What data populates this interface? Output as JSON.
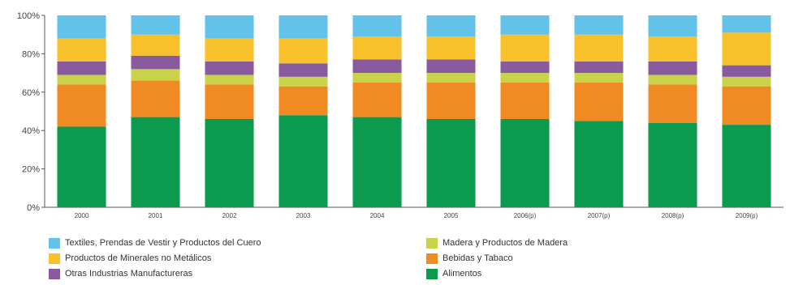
{
  "chart_data": {
    "type": "bar",
    "stacked": true,
    "percent": true,
    "title": "",
    "xlabel": "",
    "ylabel": "",
    "ylim": [
      0,
      100
    ],
    "yticks": [
      "0%",
      "20%",
      "40%",
      "60%",
      "80%",
      "100%"
    ],
    "categories": [
      "2000",
      "2001",
      "2002",
      "2003",
      "2004",
      "2005",
      "2006(p)",
      "2007(p)",
      "2008(p)",
      "2009(p)"
    ],
    "series": [
      {
        "name": "Alimentos",
        "color": "#0b9a4e",
        "values": [
          42,
          47,
          46,
          48,
          47,
          46,
          46,
          45,
          44,
          43
        ]
      },
      {
        "name": "Bebidas y Tabaco",
        "color": "#f08a22",
        "values": [
          22,
          19,
          18,
          15,
          18,
          19,
          19,
          20,
          20,
          20
        ]
      },
      {
        "name": "Madera y Productos de Madera",
        "color": "#c8d34a",
        "values": [
          5,
          6,
          5,
          5,
          5,
          5,
          5,
          5,
          5,
          5
        ]
      },
      {
        "name": "Otras Industrias Manufactureras",
        "color": "#8a5a9e",
        "values": [
          7,
          7,
          7,
          7,
          7,
          7,
          6,
          6,
          7,
          6
        ]
      },
      {
        "name": "Productos de Minerales no Metálicos",
        "color": "#f8c12b",
        "values": [
          12,
          11,
          12,
          13,
          12,
          12,
          14,
          14,
          13,
          17
        ]
      },
      {
        "name": "Textiles, Prendas de Vestir y Productos del Cuero",
        "color": "#62c2ea",
        "values": [
          12,
          10,
          12,
          12,
          11,
          11,
          10,
          10,
          11,
          9
        ]
      }
    ],
    "legend": {
      "position": "bottom",
      "order": [
        "Textiles, Prendas de Vestir y Productos del Cuero",
        "Madera y Productos de Madera",
        "Productos de Minerales no Metálicos",
        "Bebidas y Tabaco",
        "Otras Industrias Manufactureras",
        "Alimentos"
      ]
    },
    "grid": false
  }
}
